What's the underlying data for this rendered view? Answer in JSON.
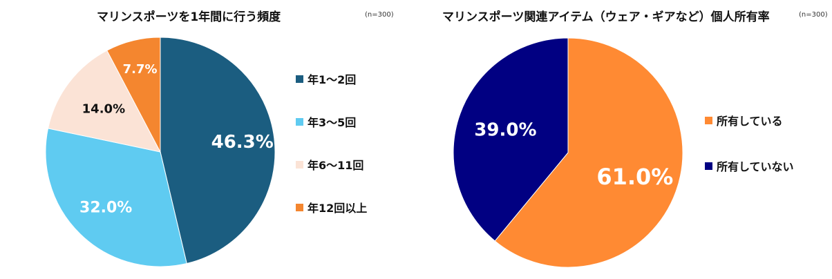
{
  "chart_data": [
    {
      "type": "pie",
      "title": "マリンスポーツを1年間に行う頻度",
      "note": "(n=300)",
      "categories": [
        "年1～2回",
        "年3～5回",
        "年6～11回",
        "年12回以上"
      ],
      "values": [
        46.3,
        32.0,
        14.0,
        7.7
      ],
      "labels": [
        "46.3%",
        "32.0%",
        "14.0%",
        "7.7%"
      ],
      "colors": [
        "#1b5d80",
        "#5fcbf1",
        "#fbe3d6",
        "#f4862f"
      ],
      "label_colors": [
        "#ffffff",
        "#ffffff",
        "#111111",
        "#ffffff"
      ],
      "legend_position": "right"
    },
    {
      "type": "pie",
      "title": "マリンスポーツ関連アイテム（ウェア・ギアなど）個人所有率",
      "note": "(n=300)",
      "categories": [
        "所有している",
        "所有していない"
      ],
      "values": [
        61.0,
        39.0
      ],
      "labels": [
        "61.0%",
        "39.0%"
      ],
      "colors": [
        "#ff8a33",
        "#010082"
      ],
      "label_colors": [
        "#ffffff",
        "#ffffff"
      ],
      "legend_position": "right"
    }
  ]
}
